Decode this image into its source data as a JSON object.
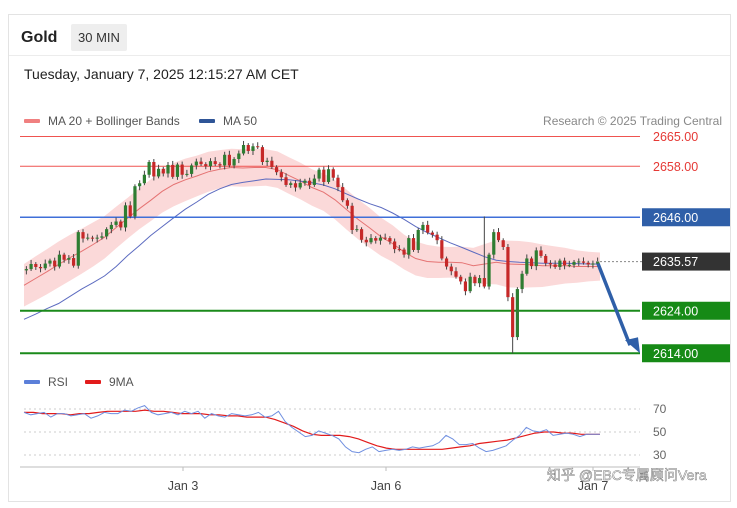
{
  "header": {
    "symbol": "Gold",
    "timeframe": "30 MIN"
  },
  "datetime": "Tuesday, January 7, 2025 12:15:27 AM CET",
  "legend": {
    "ma20": "MA 20 + Bollinger Bands",
    "ma50": "MA 50",
    "credit": "Research © 2025 Trading Central",
    "rsi": "RSI",
    "rsi_ma": "9MA"
  },
  "watermark": "知乎 @EBC专属顾问Vera",
  "colors": {
    "up": "#2e7d32",
    "down": "#c62828",
    "band": "#f9c9c9",
    "ma20": "#e57373",
    "ma50": "#5c6bc0",
    "resistance": "#ef5350",
    "pivot": "#3f6fd8",
    "support": "#1a8a1a",
    "arrow": "#2f5fa8",
    "current": "#333333"
  },
  "chart_data": {
    "type": "candlestick",
    "ylim": [
      2611,
      2667
    ],
    "x_tick_labels": [
      "Jan 3",
      "Jan 6",
      "Jan 7"
    ],
    "levels": [
      {
        "value": 2665.0,
        "label": "2665.00",
        "kind": "resistance"
      },
      {
        "value": 2658.0,
        "label": "2658.00",
        "kind": "resistance"
      },
      {
        "value": 2646.0,
        "label": "2646.00",
        "kind": "pivot"
      },
      {
        "value": 2624.0,
        "label": "2624.00",
        "kind": "support"
      },
      {
        "value": 2614.0,
        "label": "2614.00",
        "kind": "support"
      }
    ],
    "current_price": {
      "value": 2635.57,
      "label": "2635.57"
    },
    "forecast_arrow": {
      "from": 2635.57,
      "to": 2614.0
    },
    "price_path": [
      2633.5,
      2633.8,
      2635.0,
      2634.3,
      2634.0,
      2635.1,
      2635.8,
      2634.4,
      2637.2,
      2636.0,
      2636.4,
      2634.6,
      2642.5,
      2641.0,
      2641.2,
      2641.0,
      2641.2,
      2641.5,
      2643.2,
      2644.2,
      2645.0,
      2643.6,
      2648.8,
      2646.2,
      2653.3,
      2654.0,
      2656.0,
      2659.0,
      2655.6,
      2657.4,
      2656.3,
      2658.3,
      2655.5,
      2658.4,
      2656.0,
      2656.2,
      2658.2,
      2659.1,
      2658.5,
      2658.0,
      2659.2,
      2658.5,
      2658.2,
      2660.7,
      2658.2,
      2659.7,
      2661.0,
      2663.0,
      2661.6,
      2662.7,
      2662.5,
      2659.0,
      2659.3,
      2657.8,
      2656.6,
      2655.4,
      2653.6,
      2654.0,
      2653.0,
      2654.1,
      2654.6,
      2653.6,
      2655.1,
      2657.2,
      2654.3,
      2657.3,
      2655.3,
      2653.1,
      2650.0,
      2648.7,
      2643.0,
      2643.2,
      2640.7,
      2640.1,
      2641.1,
      2640.5,
      2641.2,
      2641.1,
      2640.3,
      2638.5,
      2638.4,
      2637.2,
      2641.1,
      2638.3,
      2643.0,
      2644.2,
      2642.4,
      2641.9,
      2640.6,
      2636.3,
      2634.4,
      2633.3,
      2632.0,
      2630.9,
      2628.6,
      2632.0,
      2630.5,
      2631.7,
      2629.7,
      2637.2,
      2642.5,
      2640.6,
      2639.0,
      2627.2,
      2617.8,
      2629.1,
      2632.7,
      2636.3,
      2634.5,
      2638.2,
      2636.9,
      2635.2,
      2634.9,
      2634.3,
      2635.8,
      2634.7,
      2634.8,
      2635.5,
      2635.6,
      2635.3,
      2634.9,
      2635.1,
      2635.57
    ],
    "ma20": [
      2630.0,
      2631.6,
      2633.2,
      2634.9,
      2636.5,
      2638.0,
      2639.6,
      2641.3,
      2643.6,
      2645.8,
      2648.0,
      2650.0,
      2652.1,
      2653.7,
      2654.8,
      2655.7,
      2656.7,
      2657.3,
      2657.7,
      2657.6,
      2657.7,
      2657.7,
      2657.2,
      2655.8,
      2654.5,
      2653.0,
      2651.9,
      2650.1,
      2647.8,
      2645.5,
      2643.5,
      2641.4,
      2639.8,
      2637.8,
      2636.3,
      2635.6,
      2635.4,
      2635.4,
      2635.3,
      2634.6,
      2635.0,
      2635.4,
      2635.0,
      2634.9,
      2634.8,
      2634.6,
      2634.6,
      2634.6,
      2634.4,
      2634.4,
      2634.4
    ],
    "ma50": [
      2622.0,
      2623.2,
      2624.5,
      2625.7,
      2627.4,
      2629.1,
      2630.6,
      2632.2,
      2634.4,
      2637.0,
      2639.3,
      2641.7,
      2643.8,
      2645.9,
      2647.9,
      2649.6,
      2651.4,
      2652.7,
      2653.7,
      2654.2,
      2654.6,
      2655.0,
      2654.9,
      2654.8,
      2654.5,
      2654.1,
      2653.6,
      2652.7,
      2651.5,
      2650.3,
      2649.2,
      2648.3,
      2647.0,
      2645.5,
      2643.8,
      2642.4,
      2641.2,
      2640.0,
      2638.9,
      2637.8,
      2636.7,
      2635.9,
      2635.6,
      2635.4,
      2635.3,
      2635.2,
      2635.2,
      2635.2,
      2635.1,
      2635.0,
      2635.0
    ],
    "band_halfwidth": [
      5.0,
      5.2,
      5.3,
      5.4,
      5.4,
      5.3,
      5.2,
      5.0,
      4.9,
      4.8,
      4.8,
      4.9,
      5.0,
      5.1,
      5.0,
      4.8,
      4.7,
      4.5,
      4.4,
      4.4,
      4.4,
      4.3,
      4.3,
      4.3,
      4.3,
      4.3,
      4.4,
      4.6,
      4.7,
      4.7,
      4.7,
      4.5,
      4.3,
      4.1,
      4.0,
      3.9,
      3.7,
      3.6,
      3.8,
      4.2,
      4.7,
      5.2,
      5.5,
      5.5,
      5.3,
      5.0,
      4.6,
      4.2,
      3.8,
      3.5,
      3.3
    ],
    "rsi": {
      "ylim": [
        30,
        70
      ],
      "ticks": [
        {
          "value": 70,
          "label": "70"
        },
        {
          "value": 50,
          "label": "50"
        },
        {
          "value": 30,
          "label": "30"
        }
      ],
      "rsi_values": [
        67,
        65,
        66,
        67,
        63,
        66,
        66,
        64,
        65,
        66,
        62,
        64,
        67,
        66,
        66,
        69,
        68,
        71,
        73,
        67,
        65,
        66,
        67,
        65,
        68,
        66,
        68,
        62,
        66,
        64,
        63,
        66,
        65,
        64,
        65,
        67,
        63,
        64,
        68,
        59,
        54,
        50,
        46,
        47,
        51,
        49,
        47,
        44,
        37,
        33,
        32,
        35,
        37,
        33,
        34,
        35,
        34,
        35,
        37,
        36,
        37,
        38,
        41,
        47,
        44,
        39,
        39,
        40,
        36,
        33,
        34,
        36,
        38,
        43,
        47,
        54,
        51,
        50,
        52,
        47,
        48,
        49,
        48,
        46,
        48,
        48,
        48
      ],
      "ma_values": [
        67,
        67,
        66,
        66,
        66,
        65,
        66,
        66,
        67,
        68,
        68,
        68,
        68,
        69,
        68,
        68,
        67,
        66,
        66,
        66,
        65,
        65,
        64,
        64,
        63,
        63,
        63,
        61,
        58,
        55,
        51,
        48,
        47,
        47,
        47,
        46,
        44,
        41,
        38,
        36,
        35,
        35,
        35,
        35,
        35,
        35,
        36,
        37,
        38,
        40,
        41,
        42,
        43,
        45,
        47,
        49,
        50,
        50,
        49,
        49,
        48,
        48,
        48
      ]
    }
  }
}
